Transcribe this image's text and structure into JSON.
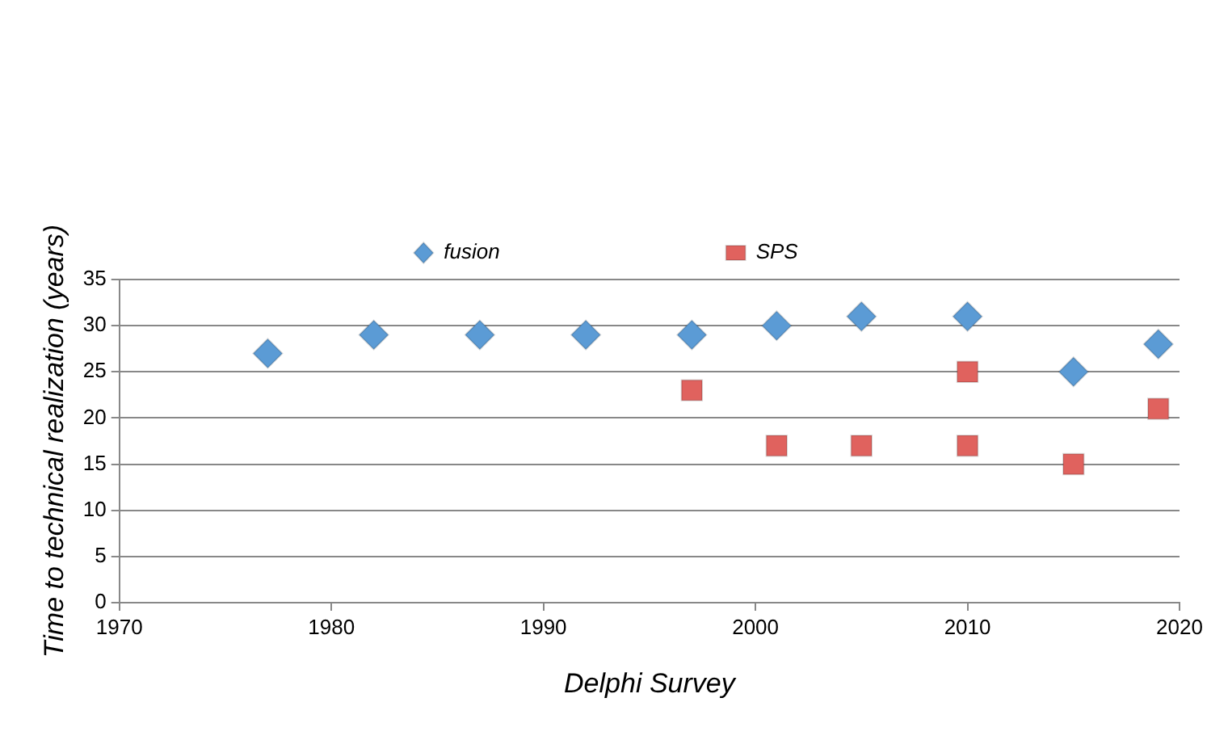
{
  "chart_data": {
    "type": "scatter",
    "xlabel": "Delphi Survey",
    "ylabel": "Time to technical realization (years)",
    "xlim": [
      1970,
      2020
    ],
    "xticks": [
      1970,
      1980,
      1990,
      2000,
      2010,
      2020
    ],
    "ylim": [
      0,
      35
    ],
    "yticks": [
      0,
      5,
      10,
      15,
      20,
      25,
      30,
      35
    ],
    "grid": "y",
    "legend": "top",
    "series": [
      {
        "name": "fusion",
        "color": "#5b9bd5",
        "marker": "diamond",
        "x": [
          1977,
          1982,
          1987,
          1992,
          1997,
          2001,
          2005,
          2010,
          2015,
          2019
        ],
        "values": [
          27,
          29,
          29,
          29,
          29,
          30,
          31,
          31,
          25,
          28
        ]
      },
      {
        "name": "SPS",
        "color": "#e0625e",
        "marker": "square",
        "x": [
          1997,
          2001,
          2005,
          2010,
          2010,
          2015,
          2019
        ],
        "values": [
          23,
          17,
          17,
          25,
          17,
          15,
          21
        ]
      }
    ]
  }
}
